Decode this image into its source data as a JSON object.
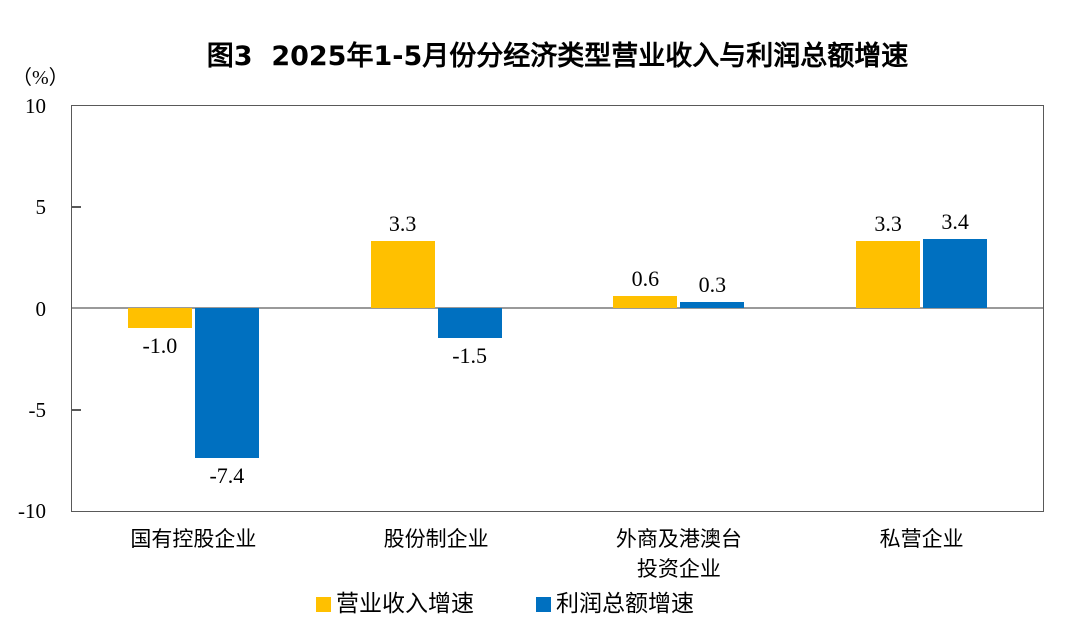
{
  "chart_data": {
    "type": "bar",
    "title": "图3  2025年1-5月份分经济类型营业收入与利润总额增速",
    "ylabel": "（%）",
    "categories": [
      "国有控股企业",
      "股份制企业",
      "外商及港澳台\n投资企业",
      "私营企业"
    ],
    "series": [
      {
        "name": "营业收入增速",
        "color": "#FFC000",
        "values": [
          -1.0,
          3.3,
          0.6,
          3.3
        ]
      },
      {
        "name": "利润总额增速",
        "color": "#0070C0",
        "values": [
          -7.4,
          -1.5,
          0.3,
          3.4
        ]
      }
    ],
    "value_labels": [
      [
        "-1.0",
        "3.3",
        "0.6",
        "3.3"
      ],
      [
        "-7.4",
        "-1.5",
        "0.3",
        "3.4"
      ]
    ],
    "ylim": [
      -10,
      10
    ],
    "yticks": [
      10,
      5,
      0,
      -5,
      -10
    ],
    "grid": false,
    "zero_line": true,
    "legend_position": "bottom",
    "colors": {
      "axis_border": "#595959",
      "zero_line": "#9A9A9A",
      "text": "#000000",
      "background": "#FFFFFF"
    }
  }
}
